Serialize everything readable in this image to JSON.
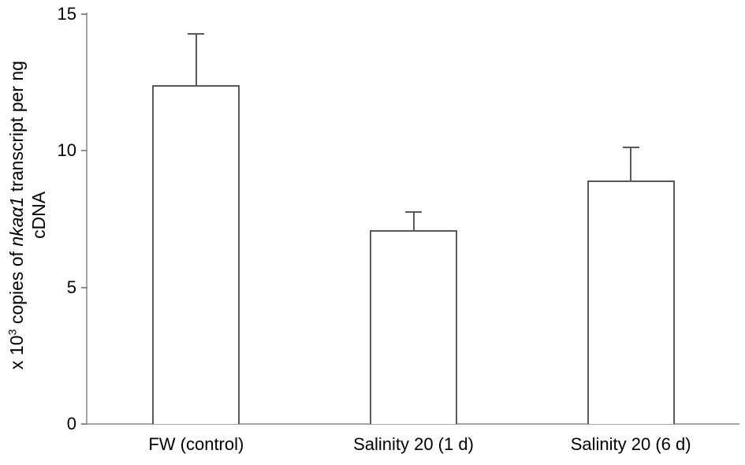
{
  "chart_data": {
    "type": "bar",
    "title": "",
    "xlabel": "",
    "ylabel_text": "x 10^3 copies of nkaα1 transcript per ng cDNA",
    "ylabel_line1_segments": [
      {
        "text": "x 10",
        "style": "normal"
      },
      {
        "text": "3",
        "style": "sup"
      },
      {
        "text": " copies of ",
        "style": "normal"
      },
      {
        "text": "nkaα1",
        "style": "italic"
      },
      {
        "text": " transcript per ng",
        "style": "normal"
      }
    ],
    "ylabel_line2": "cDNA",
    "categories": [
      "FW (control)",
      "Salinity 20 (1 d)",
      "Salinity 20 (6 d)"
    ],
    "values": [
      12.4,
      7.1,
      8.9
    ],
    "error_up": [
      1.9,
      0.7,
      1.25
    ],
    "yticks": [
      0,
      5,
      10,
      15
    ],
    "ylim": [
      0,
      15
    ],
    "grid": false,
    "legend_position": "none",
    "colors": {
      "bar_fill": "#ffffff",
      "bar_border": "#595959",
      "error_bar": "#595959",
      "axis_line": "#a6a6a6",
      "tick_mark": "#8c8c8c",
      "text": "#000000"
    }
  }
}
